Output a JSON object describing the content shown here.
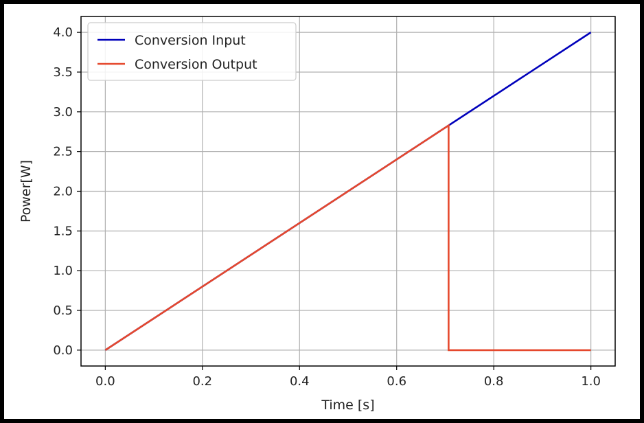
{
  "chart_data": {
    "type": "line",
    "title": "",
    "xlabel": "Time [s]",
    "ylabel": "Power[W]",
    "xlim": [
      -0.05,
      1.05
    ],
    "ylim": [
      -0.2,
      4.2
    ],
    "xticks": [
      0.0,
      0.2,
      0.4,
      0.6,
      0.8,
      1.0
    ],
    "xtick_labels": [
      "0.0",
      "0.2",
      "0.4",
      "0.6",
      "0.8",
      "1.0"
    ],
    "yticks": [
      0.0,
      0.5,
      1.0,
      1.5,
      2.0,
      2.5,
      3.0,
      3.5,
      4.0
    ],
    "ytick_labels": [
      "0.0",
      "0.5",
      "1.0",
      "1.5",
      "2.0",
      "2.5",
      "3.0",
      "3.5",
      "4.0"
    ],
    "grid": true,
    "legend_position": "top-left",
    "series": [
      {
        "name": "Conversion Input",
        "color": "#0000bb",
        "x": [
          0.0,
          1.0
        ],
        "y": [
          0.0,
          4.0
        ]
      },
      {
        "name": "Conversion Output",
        "color": "#e5482d",
        "x": [
          0.0,
          0.707,
          0.707,
          1.0
        ],
        "y": [
          0.0,
          2.828,
          0.0,
          0.0
        ]
      }
    ]
  }
}
